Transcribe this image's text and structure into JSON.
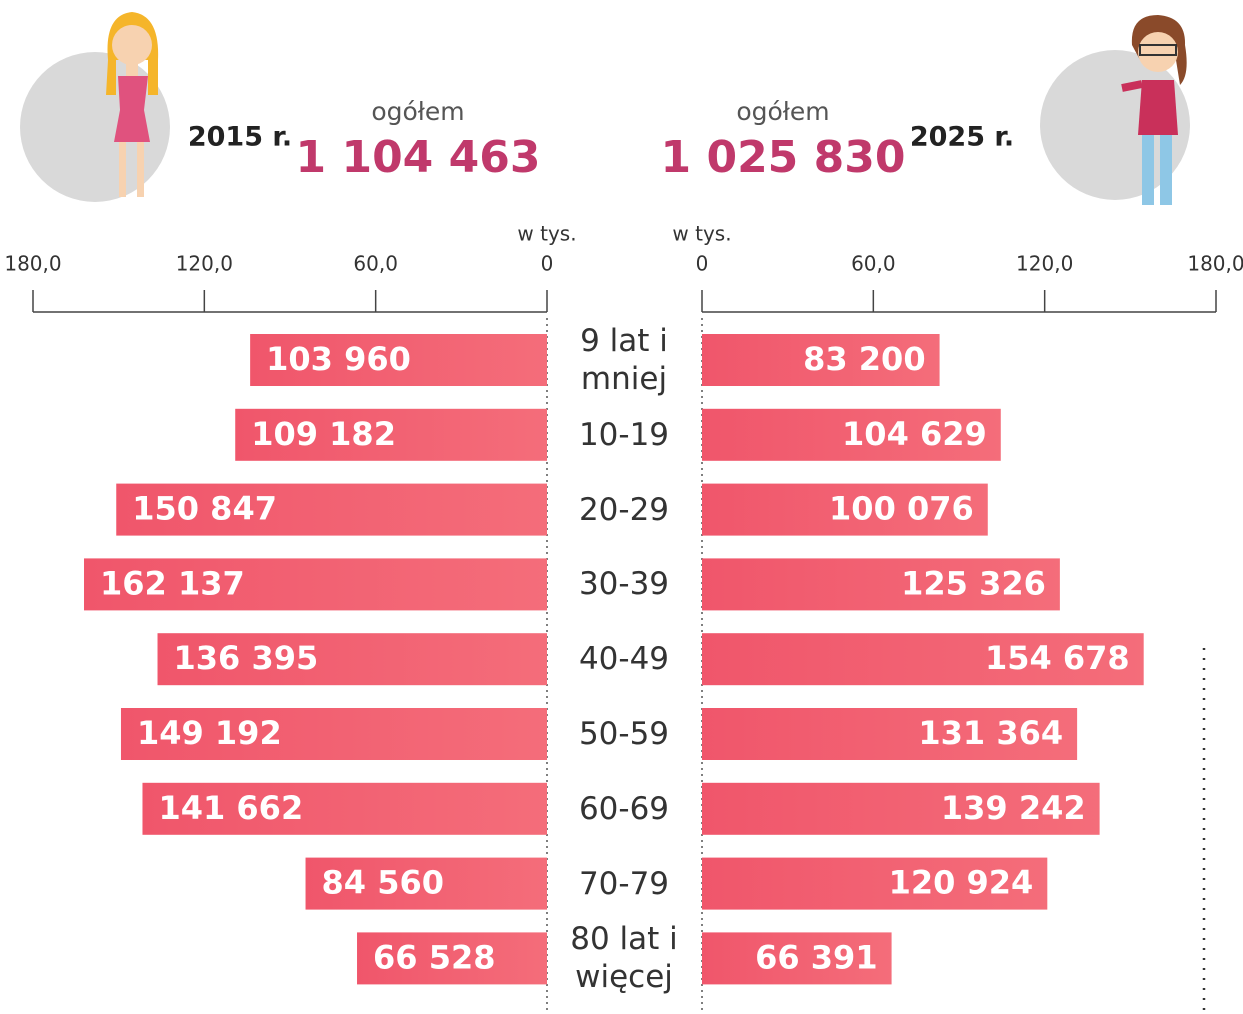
{
  "chart_data": [
    {
      "type": "bar",
      "orientation": "horizontal",
      "invert_x": true,
      "title": "2015 r.",
      "subtitle": "ogółem",
      "total": "1 104 463",
      "xlabel": "w tys.",
      "categories": [
        "9 lat i mniej",
        "10-19",
        "20-29",
        "30-39",
        "40-49",
        "50-59",
        "60-69",
        "70-79",
        "80 lat i więcej"
      ],
      "values": [
        103.96,
        109.182,
        150.847,
        162.137,
        136.395,
        149.192,
        141.662,
        84.56,
        66.528
      ],
      "value_labels": [
        "103 960",
        "109 182",
        "150 847",
        "162 137",
        "136 395",
        "149 192",
        "141 662",
        "84 560",
        "66 528"
      ],
      "color": "#f0566b",
      "xlim": [
        0,
        180
      ],
      "xticks": [
        {
          "value": 180,
          "label": "180,0"
        },
        {
          "value": 120,
          "label": "120,0"
        },
        {
          "value": 60,
          "label": "60,0"
        },
        0
      ]
    },
    {
      "type": "bar",
      "orientation": "horizontal",
      "invert_x": false,
      "title": "2025 r.",
      "subtitle": "ogółem",
      "total": "1 025 830",
      "xlabel": "w tys.",
      "values": [
        83.2,
        104.629,
        100.076,
        125.326,
        154.678,
        131.364,
        139.242,
        120.924,
        66.391
      ],
      "value_labels": [
        "83 200",
        "104 629",
        "100 076",
        "125 326",
        "154 678",
        "131 364",
        "139 242",
        "120 924",
        "66 391"
      ],
      "color": "#f0566b",
      "xlim": [
        0,
        180
      ],
      "xticks": [
        0,
        {
          "value": 60,
          "label": "60,0"
        },
        {
          "value": 120,
          "label": "120,0"
        },
        {
          "value": 180,
          "label": "180,0"
        }
      ]
    }
  ]
}
